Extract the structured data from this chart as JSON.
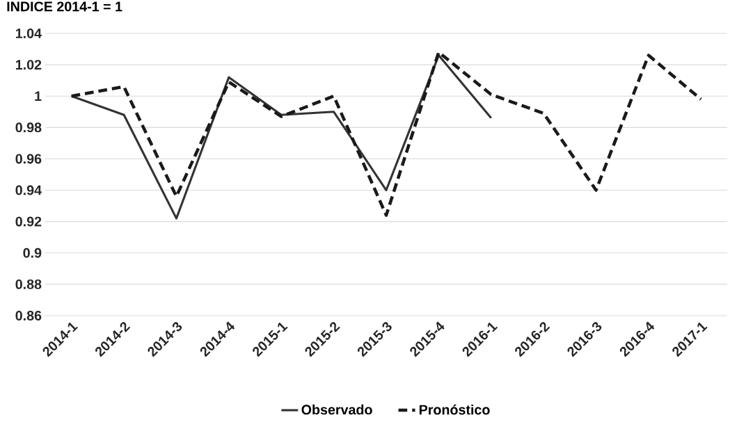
{
  "chart_data": {
    "type": "line",
    "title": "INDICE 2014-1 = 1",
    "categories": [
      "2014-1",
      "2014-2",
      "2014-3",
      "2014-4",
      "2015-1",
      "2015-2",
      "2015-3",
      "2015-4",
      "2016-1",
      "2016-2",
      "2016-3",
      "2016-4",
      "2017-1"
    ],
    "series": [
      {
        "name": "Observado",
        "color": "#333333",
        "line_style": "solid",
        "values": [
          1.0,
          0.988,
          0.922,
          1.012,
          0.988,
          0.99,
          0.94,
          1.026,
          0.986,
          null,
          null,
          null,
          null
        ]
      },
      {
        "name": "Pronóstico",
        "color": "#1a1a1a",
        "line_style": "dashed",
        "values": [
          1.0,
          1.006,
          0.936,
          1.009,
          0.987,
          1.0,
          0.924,
          1.028,
          1.001,
          0.989,
          0.94,
          1.026,
          0.998
        ]
      }
    ],
    "ylim": [
      0.86,
      1.04
    ],
    "yticks": [
      0.86,
      0.88,
      0.9,
      0.92,
      0.94,
      0.96,
      0.98,
      1,
      1.02,
      1.04
    ],
    "grid": "y",
    "legend": "bottom",
    "marker": "none"
  }
}
